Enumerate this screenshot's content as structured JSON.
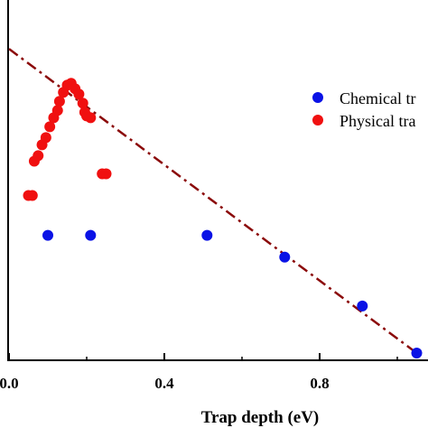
{
  "chart_data": {
    "type": "scatter",
    "xlabel": "Trap depth (eV)",
    "ylabel": "",
    "xlim": [
      -0.005,
      1.05
    ],
    "ylim": [
      0,
      100
    ],
    "x_ticks": [
      0.0,
      0.4,
      0.8
    ],
    "x_tick_labels": [
      "0.0",
      "0.4",
      "0.8"
    ],
    "grid": false,
    "legend_position": "right",
    "series": [
      {
        "name": "Chemical tr",
        "color": "#0a12e6",
        "points": [
          {
            "x": 0.1,
            "y": 34.5
          },
          {
            "x": 0.21,
            "y": 34.5
          },
          {
            "x": 0.51,
            "y": 34.5
          },
          {
            "x": 0.71,
            "y": 28.5
          },
          {
            "x": 0.91,
            "y": 15.0
          },
          {
            "x": 1.05,
            "y": 2.0
          }
        ]
      },
      {
        "name": "Physical tra",
        "color": "#f01010",
        "points": [
          {
            "x": 0.05,
            "y": 45.5
          },
          {
            "x": 0.06,
            "y": 45.5
          },
          {
            "x": 0.065,
            "y": 55.0
          },
          {
            "x": 0.075,
            "y": 56.5
          },
          {
            "x": 0.085,
            "y": 59.5
          },
          {
            "x": 0.095,
            "y": 61.5
          },
          {
            "x": 0.105,
            "y": 64.5
          },
          {
            "x": 0.115,
            "y": 67.0
          },
          {
            "x": 0.125,
            "y": 69.0
          },
          {
            "x": 0.13,
            "y": 71.5
          },
          {
            "x": 0.14,
            "y": 74.0
          },
          {
            "x": 0.15,
            "y": 76.0
          },
          {
            "x": 0.16,
            "y": 76.5
          },
          {
            "x": 0.17,
            "y": 75.0
          },
          {
            "x": 0.18,
            "y": 73.5
          },
          {
            "x": 0.19,
            "y": 71.0
          },
          {
            "x": 0.195,
            "y": 68.5
          },
          {
            "x": 0.2,
            "y": 67.5
          },
          {
            "x": 0.21,
            "y": 67.0
          },
          {
            "x": 0.24,
            "y": 51.5
          },
          {
            "x": 0.25,
            "y": 51.5
          }
        ]
      },
      {
        "name": "",
        "kind": "fit-line",
        "style": "dash-dot",
        "color": "#8b0a0a",
        "points": [
          {
            "x": 0.0,
            "y": 86.0
          },
          {
            "x": 1.05,
            "y": 2.0
          }
        ]
      }
    ]
  }
}
